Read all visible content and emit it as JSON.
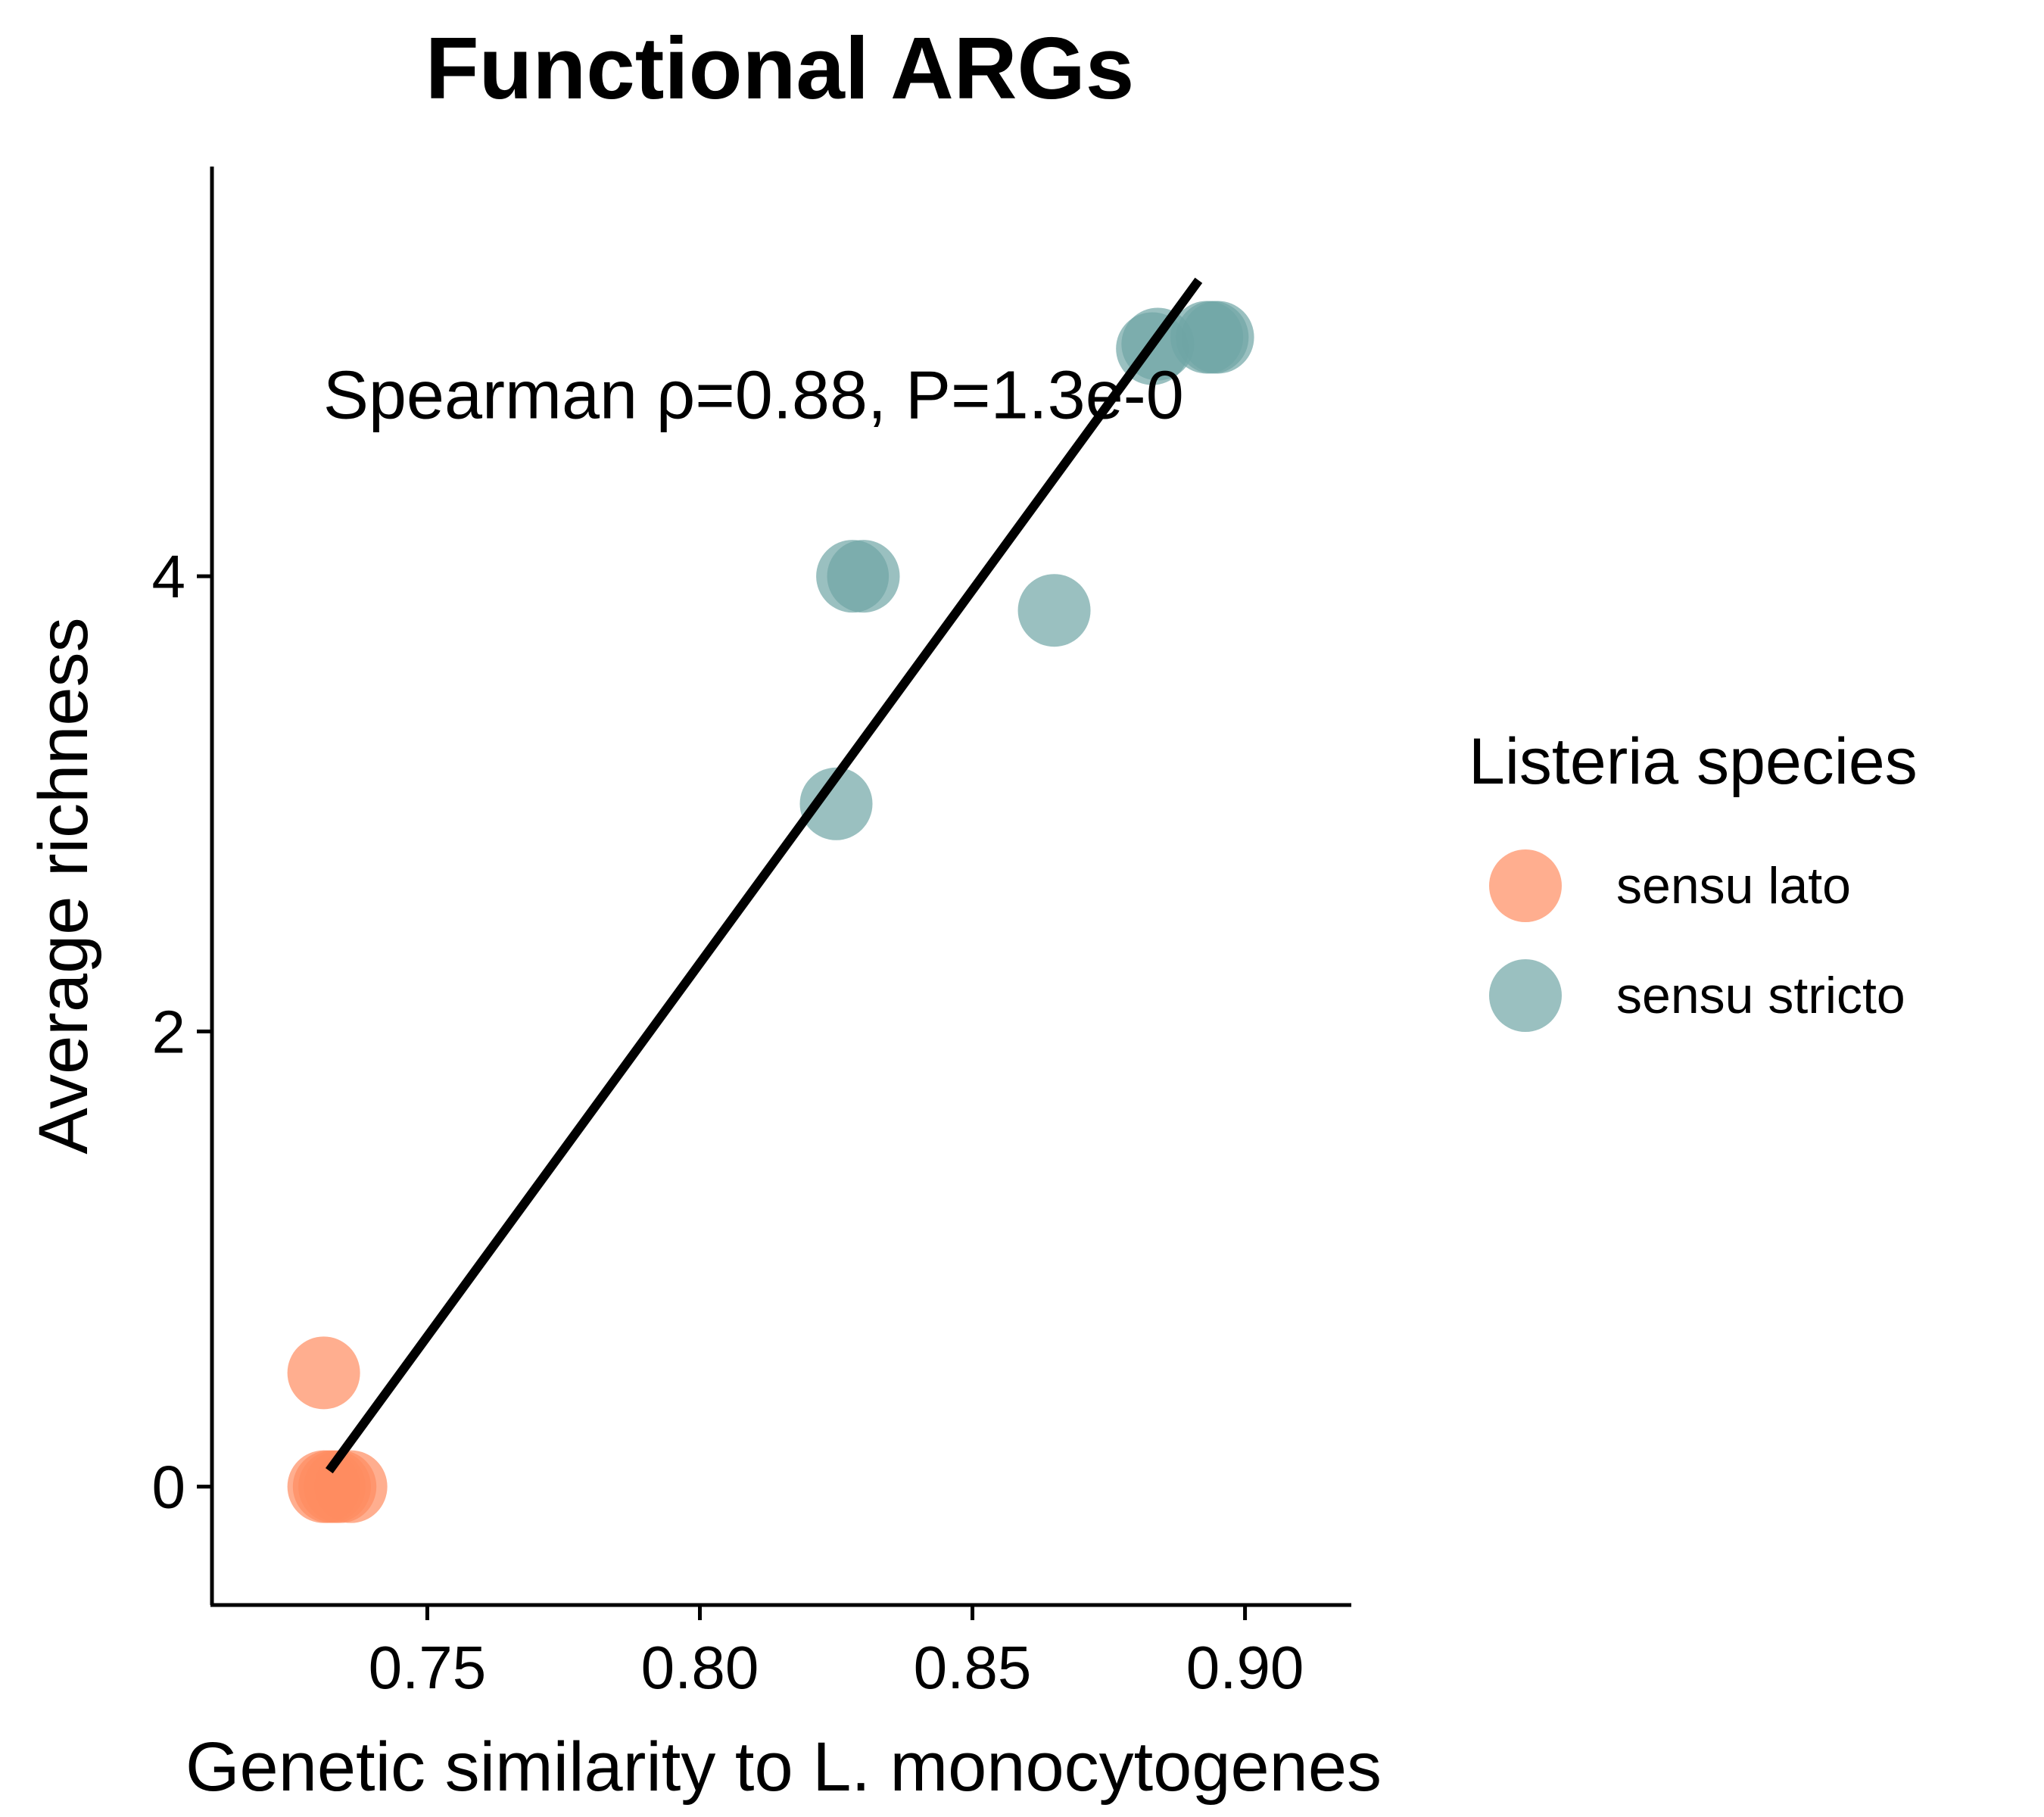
{
  "chart_data": {
    "type": "scatter",
    "title": "Functional ARGs",
    "xlabel": "Genetic similarity to L. monocytogenes",
    "ylabel": "Average richness",
    "xlim": [
      0.7105,
      0.9195
    ],
    "ylim": [
      -0.52,
      5.8
    ],
    "x_ticks": [
      0.75,
      0.8,
      0.85,
      0.9
    ],
    "x_tick_labels": [
      "0.75",
      "0.80",
      "0.85",
      "0.90"
    ],
    "y_ticks": [
      0,
      2,
      4
    ],
    "y_tick_labels": [
      "0",
      "2",
      "4"
    ],
    "grid": false,
    "annotation": {
      "text": "Spearman ρ=0.88, P=1.3e-0",
      "x": 0.732,
      "y": 4.8
    },
    "legend": {
      "title": "Listeria species",
      "position": "right"
    },
    "series": [
      {
        "name": "sensu lato",
        "color": "#FF8C5F",
        "points": [
          {
            "x": 0.731,
            "y": 0.5
          },
          {
            "x": 0.731,
            "y": 0.0
          },
          {
            "x": 0.732,
            "y": 0.0
          },
          {
            "x": 0.733,
            "y": 0.0
          },
          {
            "x": 0.734,
            "y": 0.0
          },
          {
            "x": 0.736,
            "y": 0.0
          }
        ]
      },
      {
        "name": "sensu stricto",
        "color": "#6FA5A5",
        "points": [
          {
            "x": 0.825,
            "y": 3.0
          },
          {
            "x": 0.828,
            "y": 4.0
          },
          {
            "x": 0.83,
            "y": 4.0
          },
          {
            "x": 0.865,
            "y": 3.85
          },
          {
            "x": 0.883,
            "y": 5.0
          },
          {
            "x": 0.884,
            "y": 5.02
          },
          {
            "x": 0.893,
            "y": 5.05
          },
          {
            "x": 0.894,
            "y": 5.05
          },
          {
            "x": 0.895,
            "y": 5.05
          }
        ]
      }
    ],
    "trendline": {
      "x": [
        0.732,
        0.8915
      ],
      "y": [
        0.07,
        5.3
      ],
      "color": "#000000"
    }
  }
}
